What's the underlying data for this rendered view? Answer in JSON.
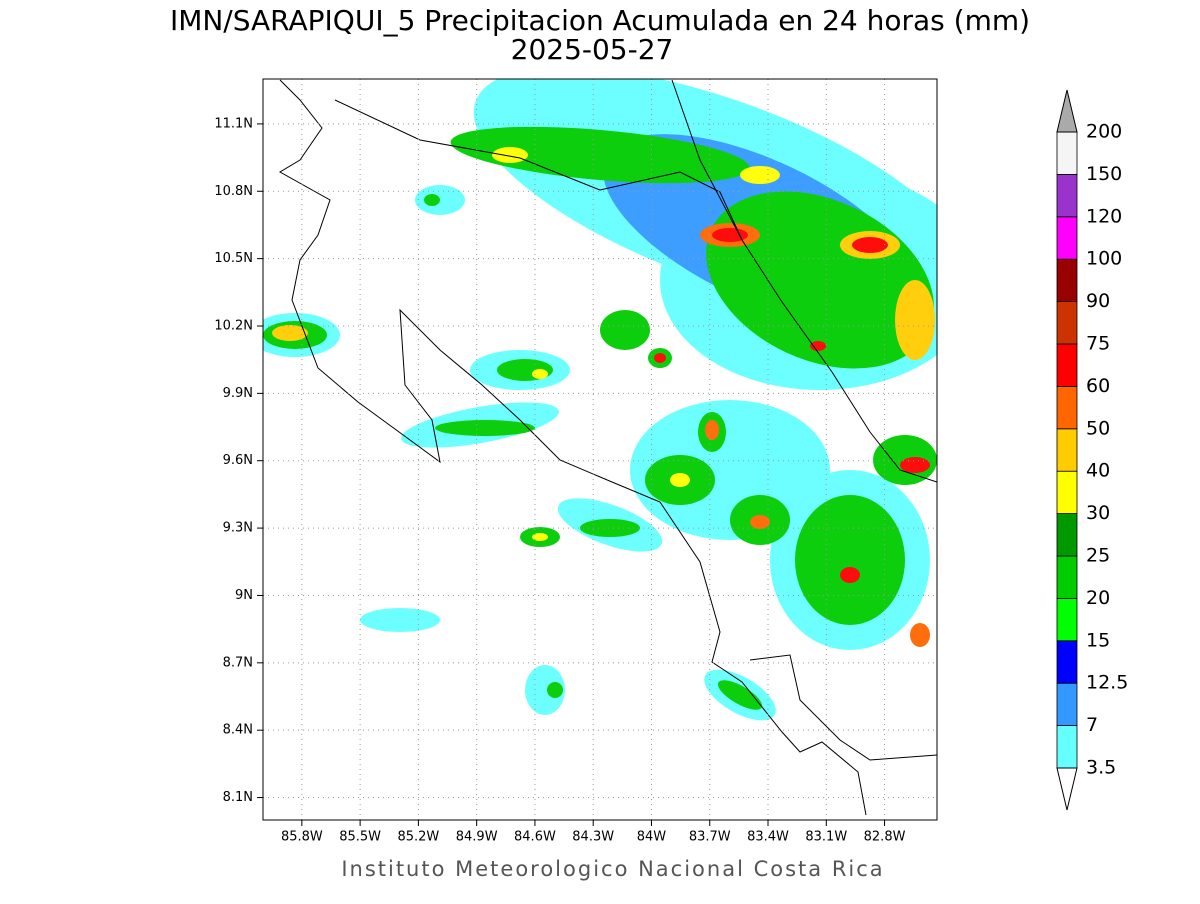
{
  "title": "IMN/SARAPIQUI_5 Precipitacion Acumulada en 24 horas (mm)",
  "subtitle": "2025-05-27",
  "footer": "Instituto Meteorologico Nacional Costa Rica",
  "map": {
    "xlim": [
      -86.0,
      -82.53
    ],
    "ylim": [
      8.0,
      11.3
    ],
    "grid": true,
    "xticks": [
      {
        "value": -85.8,
        "label": "85.8W"
      },
      {
        "value": -85.5,
        "label": "85.5W"
      },
      {
        "value": -85.2,
        "label": "85.2W"
      },
      {
        "value": -84.9,
        "label": "84.9W"
      },
      {
        "value": -84.6,
        "label": "84.6W"
      },
      {
        "value": -84.3,
        "label": "84.3W"
      },
      {
        "value": -84.0,
        "label": "84W"
      },
      {
        "value": -83.7,
        "label": "83.7W"
      },
      {
        "value": -83.4,
        "label": "83.4W"
      },
      {
        "value": -83.1,
        "label": "83.1W"
      },
      {
        "value": -82.8,
        "label": "82.8W"
      }
    ],
    "yticks": [
      {
        "value": 11.1,
        "label": "11.1N"
      },
      {
        "value": 10.8,
        "label": "10.8N"
      },
      {
        "value": 10.5,
        "label": "10.5N"
      },
      {
        "value": 10.2,
        "label": "10.2N"
      },
      {
        "value": 9.9,
        "label": "9.9N"
      },
      {
        "value": 9.6,
        "label": "9.6N"
      },
      {
        "value": 9.3,
        "label": "9.3N"
      },
      {
        "value": 9.0,
        "label": "9N"
      },
      {
        "value": 8.7,
        "label": "8.7N"
      },
      {
        "value": 8.4,
        "label": "8.4N"
      },
      {
        "value": 8.1,
        "label": "8.1N"
      }
    ]
  },
  "colorbar": {
    "levels": [
      3.5,
      7,
      12.5,
      15,
      20,
      25,
      30,
      40,
      50,
      60,
      75,
      90,
      100,
      120,
      150,
      200
    ],
    "colors": [
      "#66ffff",
      "#3399ff",
      "#0000ff",
      "#00ff00",
      "#00cc00",
      "#009900",
      "#ffff00",
      "#ffcc00",
      "#ff6600",
      "#ff0000",
      "#cc3300",
      "#990000",
      "#ff00ff",
      "#9933cc",
      "#f5f5f5"
    ],
    "over_color": "#aaaaaa",
    "under_color": "#ffffff"
  }
}
